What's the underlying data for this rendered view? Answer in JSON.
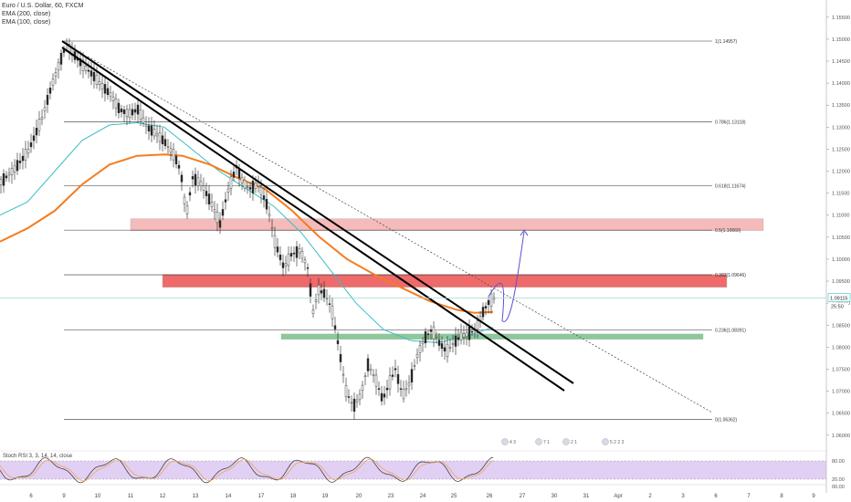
{
  "legend": {
    "symbol": "Euro / U.S. Dollar, 60, FXCM",
    "ema200": "EMA (200, close)",
    "ema100": "EMA (100, close)"
  },
  "oscillator": {
    "label": "Stoch RSI 3, 3, 14, 14, close",
    "levels": [
      "80.00",
      "20.00",
      "00.00"
    ]
  },
  "colors": {
    "candle_up": "#2b2b2b",
    "candle_down": "#ffffff",
    "ema200": "#f57c1f",
    "ema100": "#3bbfc1",
    "fib": "#333333",
    "zone_upper": "#f4b3b3",
    "zone_mid": "#ee5a5a",
    "zone_green": "#7fc490",
    "projection": "#5b4fd4",
    "stoch_fill": "#dcc7f2"
  },
  "chart_data": {
    "type": "candlestick",
    "title": "Euro / U.S. Dollar, 60, FXCM",
    "price_axis": {
      "ylim": [
        1.0585,
        1.156
      ],
      "ticks": [
        1.155,
        1.15,
        1.145,
        1.14,
        1.135,
        1.13,
        1.125,
        1.12,
        1.115,
        1.11,
        1.105,
        1.1,
        1.095,
        1.09,
        1.085,
        1.08,
        1.075,
        1.07,
        1.065,
        1.06
      ],
      "tick_labels": [
        "1.15500",
        "1.15000",
        "1.14500",
        "1.14000",
        "1.13500",
        "1.13000",
        "1.12500",
        "1.12000",
        "1.11500",
        "1.11000",
        "1.10500",
        "1.10000",
        "1.09500",
        "1.09000",
        "1.08500",
        "1.08000",
        "1.07500",
        "1.07000",
        "1.06500",
        "1.06000"
      ],
      "current_price": 1.09115,
      "current_price_label": "1.09115",
      "countdown_label": "25:50"
    },
    "time_axis": {
      "labels": [
        "6",
        "9",
        "10",
        "11",
        "12",
        "13",
        "14",
        "17",
        "18",
        "19",
        "20",
        "23",
        "24",
        "25",
        "26",
        "27",
        "30",
        "31",
        "Apr",
        "2",
        "3",
        "6",
        "7",
        "8",
        "9"
      ]
    },
    "fib_levels": [
      {
        "ratio": "1",
        "price": 1.14957,
        "label": "1(1.14957)"
      },
      {
        "ratio": "0.786",
        "price": 1.13118,
        "label": "0.786(1.13118)"
      },
      {
        "ratio": "0.618",
        "price": 1.11674,
        "label": "0.618(1.11674)"
      },
      {
        "ratio": "0.5",
        "price": 1.1066,
        "label": "0.5(1.10660)"
      },
      {
        "ratio": "0.382",
        "price": 1.09646,
        "label": "0.382(1.09646)"
      },
      {
        "ratio": "0.236",
        "price": 1.08391,
        "label": "0.236(1.08391)"
      },
      {
        "ratio": "0",
        "price": 1.06362,
        "label": "0(1.06362)"
      }
    ],
    "zones": [
      {
        "name": "upper-zone",
        "price_top": 1.1092,
        "price_bottom": 1.1065,
        "color": "#f4b3b3"
      },
      {
        "name": "middle-zone",
        "price_top": 1.0965,
        "price_bottom": 1.0936,
        "color": "#ee5a5a"
      },
      {
        "name": "green-zone",
        "price_top": 1.083,
        "price_bottom": 1.0818,
        "color": "#7fc490"
      }
    ],
    "events": [
      {
        "label": "4 3"
      },
      {
        "label": "7 1"
      },
      {
        "label": "2 1"
      },
      {
        "label": "5 2 2 3"
      }
    ]
  }
}
